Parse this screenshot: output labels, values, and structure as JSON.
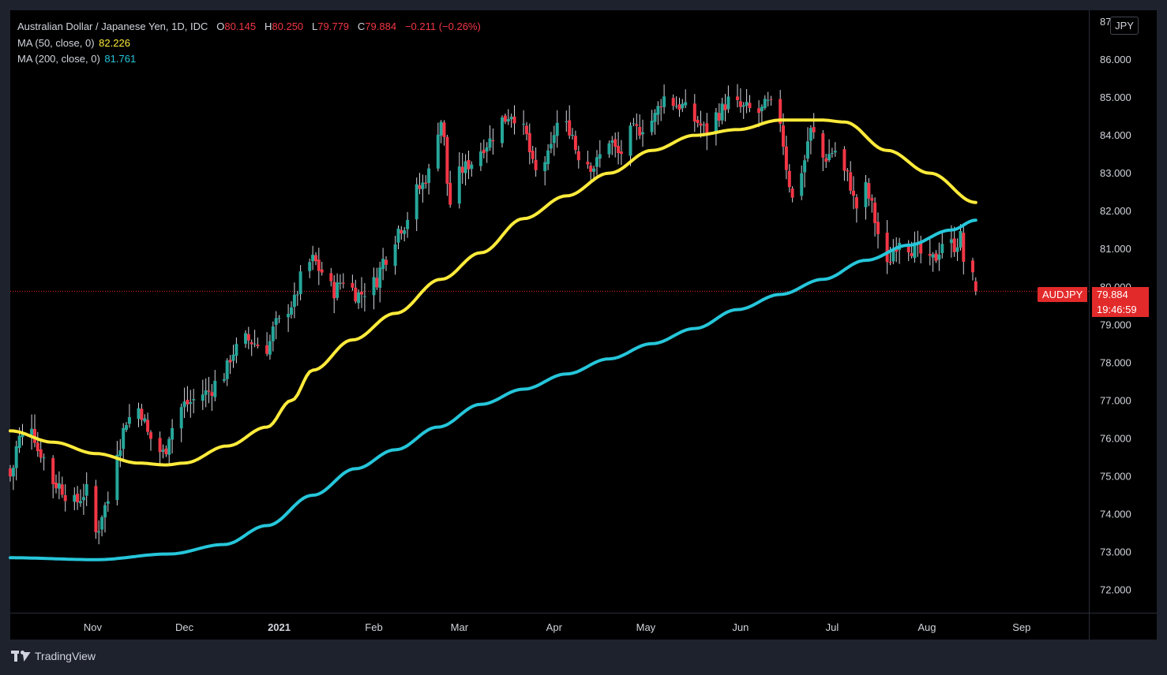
{
  "legend": {
    "title": "Australian Dollar / Japanese Yen, 1D, IDC",
    "o_label": "O",
    "o_val": "80.145",
    "h_label": "H",
    "h_val": "80.250",
    "l_label": "L",
    "l_val": "79.779",
    "c_label": "C",
    "c_val": "79.884",
    "change": "−0.211 (−0.26%)",
    "ma50_label": "MA (50, close, 0)",
    "ma50_val": "82.226",
    "ma200_label": "MA (200, close, 0)",
    "ma200_val": "81.761"
  },
  "currency_badge": "JPY",
  "last_price": {
    "symbol": "AUDJPY",
    "price": "79.884",
    "countdown": "19:46:59"
  },
  "branding": "TradingView",
  "colors": {
    "up": "#26a69a",
    "down": "#f23645",
    "ma50": "#ffeb3b",
    "ma200": "#26c6da",
    "last": "#e32a2a"
  },
  "chart_data": {
    "type": "candlestick",
    "symbol": "AUDJPY",
    "interval": "1D",
    "y_range": [
      71.4,
      87.3
    ],
    "y_ticks": [
      {
        "value": 72,
        "label": "72.000"
      },
      {
        "value": 73,
        "label": "73.000"
      },
      {
        "value": 74,
        "label": "74.000"
      },
      {
        "value": 75,
        "label": "75.000"
      },
      {
        "value": 76,
        "label": "76.000"
      },
      {
        "value": 77,
        "label": "77.000"
      },
      {
        "value": 78,
        "label": "78.000"
      },
      {
        "value": 79,
        "label": "79.000"
      },
      {
        "value": 80,
        "label": "80.000"
      },
      {
        "value": 81,
        "label": "81.000"
      },
      {
        "value": 82,
        "label": "82.000"
      },
      {
        "value": 83,
        "label": "83.000"
      },
      {
        "value": 84,
        "label": "84.000"
      },
      {
        "value": 85,
        "label": "85.000"
      },
      {
        "value": 86,
        "label": "86.000"
      },
      {
        "value": 87,
        "label": "87.000"
      }
    ],
    "x_range": [
      "2020-10-05",
      "2021-09-23"
    ],
    "x_ticks": [
      {
        "date": "2020-11-01",
        "label": "Nov",
        "bold": false
      },
      {
        "date": "2020-12-01",
        "label": "Dec",
        "bold": false
      },
      {
        "date": "2021-01-01",
        "label": "2021",
        "bold": true
      },
      {
        "date": "2021-02-01",
        "label": "Feb",
        "bold": false
      },
      {
        "date": "2021-03-01",
        "label": "Mar",
        "bold": false
      },
      {
        "date": "2021-04-01",
        "label": "Apr",
        "bold": false
      },
      {
        "date": "2021-05-01",
        "label": "May",
        "bold": false
      },
      {
        "date": "2021-06-01",
        "label": "Jun",
        "bold": false
      },
      {
        "date": "2021-07-01",
        "label": "Jul",
        "bold": false
      },
      {
        "date": "2021-08-01",
        "label": "Aug",
        "bold": false
      },
      {
        "date": "2021-09-01",
        "label": "Sep",
        "bold": false
      }
    ],
    "close_anchors": [
      [
        "2020-10-05",
        75.0
      ],
      [
        "2020-10-08",
        76.0
      ],
      [
        "2020-10-12",
        76.4
      ],
      [
        "2020-10-14",
        75.7
      ],
      [
        "2020-10-20",
        74.8
      ],
      [
        "2020-10-26",
        74.3
      ],
      [
        "2020-10-30",
        74.6
      ],
      [
        "2020-11-02",
        73.5
      ],
      [
        "2020-11-05",
        74.2
      ],
      [
        "2020-11-10",
        75.9
      ],
      [
        "2020-11-12",
        76.5
      ],
      [
        "2020-11-16",
        76.8
      ],
      [
        "2020-11-20",
        76.0
      ],
      [
        "2020-11-24",
        75.6
      ],
      [
        "2020-11-27",
        76.3
      ],
      [
        "2020-12-01",
        76.9
      ],
      [
        "2020-12-08",
        77.2
      ],
      [
        "2020-12-14",
        77.7
      ],
      [
        "2020-12-17",
        78.3
      ],
      [
        "2020-12-21",
        78.6
      ],
      [
        "2020-12-28",
        78.4
      ],
      [
        "2020-12-31",
        79.0
      ],
      [
        "2021-01-06",
        79.6
      ],
      [
        "2021-01-08",
        80.2
      ],
      [
        "2021-01-12",
        80.7
      ],
      [
        "2021-01-15",
        80.4
      ],
      [
        "2021-01-19",
        79.9
      ],
      [
        "2021-01-22",
        80.2
      ],
      [
        "2021-01-27",
        79.8
      ],
      [
        "2021-02-01",
        80.1
      ],
      [
        "2021-02-05",
        80.8
      ],
      [
        "2021-02-10",
        81.6
      ],
      [
        "2021-02-16",
        82.6
      ],
      [
        "2021-02-19",
        83.0
      ],
      [
        "2021-02-23",
        84.4
      ],
      [
        "2021-02-26",
        82.2
      ],
      [
        "2021-03-02",
        83.1
      ],
      [
        "2021-03-05",
        83.3
      ],
      [
        "2021-03-10",
        83.8
      ],
      [
        "2021-03-15",
        84.4
      ],
      [
        "2021-03-18",
        84.6
      ],
      [
        "2021-03-22",
        84.1
      ],
      [
        "2021-03-26",
        83.0
      ],
      [
        "2021-03-30",
        83.4
      ],
      [
        "2021-04-02",
        84.3
      ],
      [
        "2021-04-06",
        84.2
      ],
      [
        "2021-04-09",
        83.5
      ],
      [
        "2021-04-14",
        83.2
      ],
      [
        "2021-04-19",
        83.9
      ],
      [
        "2021-04-22",
        83.5
      ],
      [
        "2021-04-27",
        84.1
      ],
      [
        "2021-05-03",
        84.4
      ],
      [
        "2021-05-07",
        85.0
      ],
      [
        "2021-05-12",
        84.8
      ],
      [
        "2021-05-17",
        84.4
      ],
      [
        "2021-05-21",
        84.1
      ],
      [
        "2021-05-25",
        84.6
      ],
      [
        "2021-05-28",
        84.9
      ],
      [
        "2021-06-02",
        84.7
      ],
      [
        "2021-06-07",
        84.6
      ],
      [
        "2021-06-10",
        84.8
      ],
      [
        "2021-06-14",
        84.4
      ],
      [
        "2021-06-16",
        83.2
      ],
      [
        "2021-06-18",
        82.3
      ],
      [
        "2021-06-21",
        83.1
      ],
      [
        "2021-06-24",
        84.1
      ],
      [
        "2021-06-28",
        83.4
      ],
      [
        "2021-07-02",
        83.6
      ],
      [
        "2021-07-06",
        82.9
      ],
      [
        "2021-07-09",
        82.1
      ],
      [
        "2021-07-12",
        82.6
      ],
      [
        "2021-07-14",
        82.1
      ],
      [
        "2021-07-16",
        81.4
      ],
      [
        "2021-07-19",
        80.5
      ],
      [
        "2021-07-21",
        81.0
      ],
      [
        "2021-07-23",
        81.3
      ],
      [
        "2021-07-28",
        81.0
      ],
      [
        "2021-08-02",
        80.6
      ],
      [
        "2021-08-04",
        80.8
      ],
      [
        "2021-08-06",
        81.2
      ],
      [
        "2021-08-10",
        81.1
      ],
      [
        "2021-08-12",
        81.3
      ],
      [
        "2021-08-13",
        80.7
      ],
      [
        "2021-08-16",
        80.2
      ],
      [
        "2021-08-17",
        79.884
      ]
    ],
    "ma50_anchors": [
      [
        "2020-10-05",
        76.2
      ],
      [
        "2020-10-19",
        75.9
      ],
      [
        "2020-11-02",
        75.6
      ],
      [
        "2020-11-16",
        75.35
      ],
      [
        "2020-11-25",
        75.3
      ],
      [
        "2020-12-01",
        75.35
      ],
      [
        "2020-12-15",
        75.8
      ],
      [
        "2020-12-28",
        76.3
      ],
      [
        "2021-01-05",
        77.0
      ],
      [
        "2021-01-12",
        77.8
      ],
      [
        "2021-01-25",
        78.6
      ],
      [
        "2021-02-08",
        79.3
      ],
      [
        "2021-02-23",
        80.2
      ],
      [
        "2021-03-08",
        80.9
      ],
      [
        "2021-03-22",
        81.8
      ],
      [
        "2021-04-05",
        82.4
      ],
      [
        "2021-04-19",
        83.0
      ],
      [
        "2021-05-03",
        83.6
      ],
      [
        "2021-05-17",
        84.0
      ],
      [
        "2021-05-31",
        84.15
      ],
      [
        "2021-06-14",
        84.4
      ],
      [
        "2021-06-28",
        84.4
      ],
      [
        "2021-07-05",
        84.35
      ],
      [
        "2021-07-19",
        83.6
      ],
      [
        "2021-08-02",
        83.0
      ],
      [
        "2021-08-17",
        82.226
      ]
    ],
    "ma200_anchors": [
      [
        "2020-10-05",
        72.85
      ],
      [
        "2020-11-02",
        72.8
      ],
      [
        "2020-11-26",
        72.95
      ],
      [
        "2020-12-14",
        73.2
      ],
      [
        "2020-12-28",
        73.7
      ],
      [
        "2021-01-12",
        74.5
      ],
      [
        "2021-01-26",
        75.2
      ],
      [
        "2021-02-08",
        75.7
      ],
      [
        "2021-02-22",
        76.3
      ],
      [
        "2021-03-08",
        76.9
      ],
      [
        "2021-03-22",
        77.3
      ],
      [
        "2021-04-05",
        77.7
      ],
      [
        "2021-04-19",
        78.1
      ],
      [
        "2021-05-03",
        78.5
      ],
      [
        "2021-05-17",
        78.9
      ],
      [
        "2021-05-31",
        79.4
      ],
      [
        "2021-06-14",
        79.8
      ],
      [
        "2021-06-28",
        80.2
      ],
      [
        "2021-07-12",
        80.7
      ],
      [
        "2021-07-26",
        81.1
      ],
      [
        "2021-08-09",
        81.5
      ],
      [
        "2021-08-17",
        81.761
      ]
    ],
    "last_close": 79.884,
    "series": [
      {
        "name": "MA (50, close, 0)",
        "last": 82.226
      },
      {
        "name": "MA (200, close, 0)",
        "last": 81.761
      }
    ]
  }
}
